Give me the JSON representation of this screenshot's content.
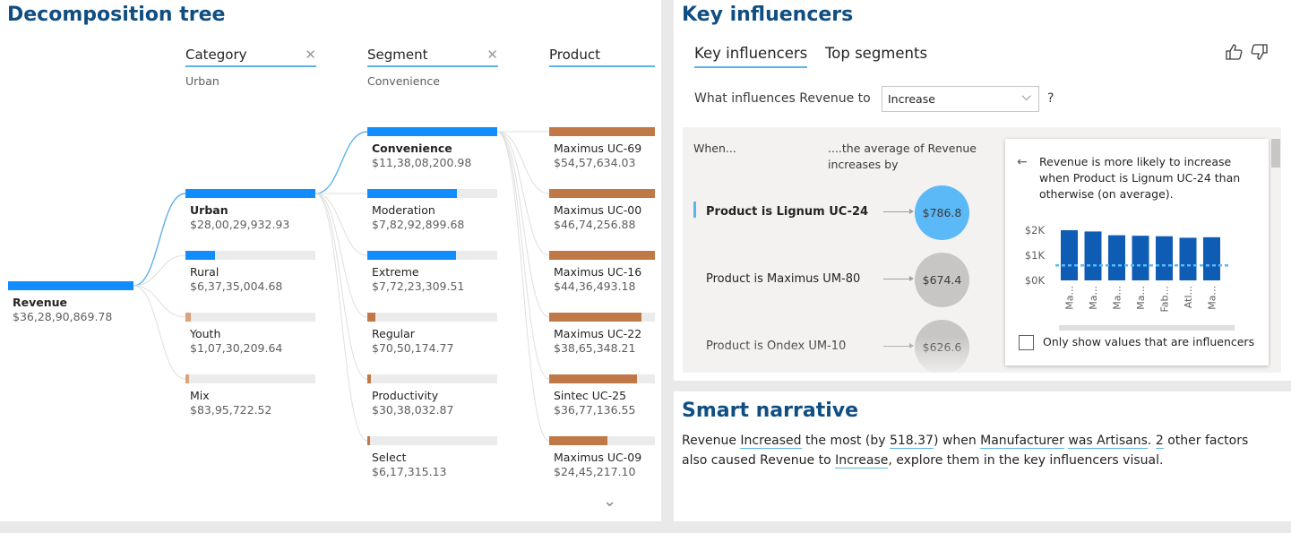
{
  "decomposition": {
    "title": "Decomposition tree",
    "levels": [
      {
        "label": "Category",
        "selected": "Urban",
        "removable": true
      },
      {
        "label": "Segment",
        "selected": "Convenience",
        "removable": true
      },
      {
        "label": "Product",
        "selected": "",
        "removable": false
      }
    ],
    "root": {
      "label": "Revenue",
      "value": "$36,28,90,869.78",
      "fraction": 1.0
    },
    "category_nodes": [
      {
        "label": "Urban",
        "value": "$28,00,29,932.93",
        "fraction": 1.0,
        "selected": true
      },
      {
        "label": "Rural",
        "value": "$6,37,35,004.68",
        "fraction": 0.23
      },
      {
        "label": "Youth",
        "value": "$1,07,30,209.64",
        "fraction": 0.038
      },
      {
        "label": "Mix",
        "value": "$83,95,722.52",
        "fraction": 0.03
      }
    ],
    "segment_nodes": [
      {
        "label": "Convenience",
        "value": "$11,38,08,200.98",
        "fraction": 1.0,
        "selected": true
      },
      {
        "label": "Moderation",
        "value": "$7,82,92,899.68",
        "fraction": 0.69
      },
      {
        "label": "Extreme",
        "value": "$7,72,23,309.51",
        "fraction": 0.68
      },
      {
        "label": "Regular",
        "value": "$70,50,174.77",
        "fraction": 0.062
      },
      {
        "label": "Productivity",
        "value": "$30,38,032.87",
        "fraction": 0.027
      },
      {
        "label": "Select",
        "value": "$6,17,315.13",
        "fraction": 0.006
      }
    ],
    "product_nodes": [
      {
        "label": "Maximus UC-69",
        "value": "$54,57,634.03",
        "fraction": 1.0
      },
      {
        "label": "Maximus UC-00",
        "value": "$46,74,256.88",
        "fraction": 1.0
      },
      {
        "label": "Maximus UC-16",
        "value": "$44,36,493.18",
        "fraction": 1.0
      },
      {
        "label": "Maximus UC-22",
        "value": "$38,65,348.21",
        "fraction": 0.87
      },
      {
        "label": "Sintec UC-25",
        "value": "$36,77,136.55",
        "fraction": 0.83
      },
      {
        "label": "Maximus UC-09",
        "value": "$24,45,217.10",
        "fraction": 0.55
      }
    ],
    "colors": {
      "blue": "#118dff",
      "brown": "#c07846",
      "light_brown": "#dba27c",
      "link": "#5eb3e8",
      "track": "#ebebeb"
    },
    "more_icon": "chevron-down-icon"
  },
  "key_influencers": {
    "title": "Key influencers",
    "tabs": [
      {
        "label": "Key influencers",
        "active": true
      },
      {
        "label": "Top segments",
        "active": false
      }
    ],
    "question_label": "What influences Revenue to",
    "question_value": "Increase",
    "question_suffix": "?",
    "when_header": "When...",
    "avg_header_line1": "....the average of Revenue",
    "avg_header_line2": "increases by",
    "influencers": [
      {
        "label": "Product is Lignum UC-24",
        "value": "$786.8",
        "selected": true,
        "color": "#5bb9f7"
      },
      {
        "label": "Product is Maximus UM-80",
        "value": "$674.4",
        "selected": false,
        "color": "#c8c6c4"
      },
      {
        "label": "Product is Ondex UM-10",
        "value": "$626.6",
        "selected": false,
        "color": "#c8c6c4"
      }
    ],
    "detail": {
      "text": "Revenue is more likely to increase when Product is Lignum UC-24 than otherwise (on average).",
      "checkbox_label": "Only show values that are influencers",
      "checkbox_checked": false
    }
  },
  "chart_data": {
    "type": "bar",
    "categories": [
      "Ma...",
      "Ma...",
      "Ma...",
      "Ma...",
      "Fab...",
      "Atl...",
      "Ma..."
    ],
    "values": [
      2000,
      1950,
      1800,
      1780,
      1760,
      1700,
      1720
    ],
    "ylim": [
      0,
      2000
    ],
    "yticks": [
      "$0K",
      "$1K",
      "$2K"
    ],
    "average_line": 600,
    "bar_color": "#0f5cb5",
    "average_line_color": "#5bb9f7",
    "grid": false
  },
  "smart_narrative": {
    "title": "Smart narrative",
    "parts": [
      {
        "text": "Revenue ",
        "hl": false
      },
      {
        "text": "Increased",
        "hl": true
      },
      {
        "text": " the most (by ",
        "hl": false
      },
      {
        "text": "518.37",
        "hl": true
      },
      {
        "text": ") when ",
        "hl": false
      },
      {
        "text": "Manufacturer",
        "hl": true
      },
      {
        "text": " ",
        "hl": false
      },
      {
        "text": "was Artisans",
        "hl": true
      },
      {
        "text": ". ",
        "hl": false
      },
      {
        "text": "2",
        "hl": true
      },
      {
        "text": " other factors also caused Revenue to ",
        "hl": false
      },
      {
        "text": "Increase",
        "hl": true
      },
      {
        "text": ", explore them in the key influencers visual.",
        "hl": false
      }
    ]
  }
}
